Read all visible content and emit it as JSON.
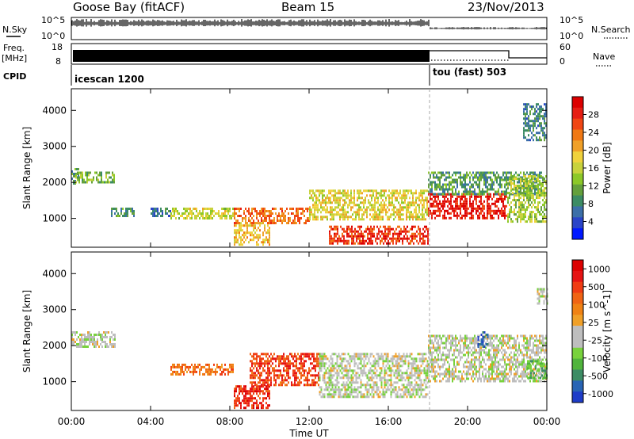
{
  "header": {
    "station": "Goose Bay (fitACF)",
    "beam": "Beam 15",
    "date": "23/Nov/2013"
  },
  "noise_panel": {
    "left_label": "N.Sky",
    "right_label": "N.Search",
    "left_ticks": [
      "10^5",
      "10^0"
    ],
    "right_ticks": [
      "10^5",
      "10^0"
    ]
  },
  "freq_panel": {
    "left_label_line1": "Freq.",
    "left_label_line2": "[MHz]",
    "left_ticks": [
      "18",
      "8"
    ],
    "right_label": "Nave",
    "right_ticks": [
      "60",
      "0"
    ]
  },
  "cpid_panel": {
    "label": "CPID",
    "segments": [
      {
        "name": "icescan 1200",
        "start_hour": 0
      },
      {
        "name": "tou (fast) 503",
        "start_hour": 18
      }
    ]
  },
  "chart_data": [
    {
      "type": "heatmap",
      "name": "power",
      "ylabel": "Slant Range [km]",
      "yticks": [
        "1000",
        "2000",
        "3000",
        "4000"
      ],
      "ylim": [
        200,
        4600
      ],
      "xlim": [
        0,
        24
      ],
      "colorbar": {
        "label": "Power [dB]",
        "ticks": [
          "4",
          "8",
          "12",
          "16",
          "20",
          "24",
          "28"
        ],
        "colors": [
          "#0018ff",
          "#2a44c8",
          "#3c6fa8",
          "#3c8c64",
          "#64a03c",
          "#8cc828",
          "#c8d23c",
          "#f0d23c",
          "#f0a028",
          "#f07814",
          "#f04614",
          "#e61e14",
          "#dc0000"
        ]
      },
      "regions": [
        {
          "x": [
            0,
            0.4
          ],
          "y": [
            2000,
            2400
          ],
          "level": 0.3
        },
        {
          "x": [
            0.2,
            2.2
          ],
          "y": [
            2000,
            2300
          ],
          "level": 0.4
        },
        {
          "x": [
            2.0,
            3.2
          ],
          "y": [
            1100,
            1300
          ],
          "level": 0.3
        },
        {
          "x": [
            4.0,
            5.0
          ],
          "y": [
            1100,
            1300
          ],
          "level": 0.2
        },
        {
          "x": [
            5.0,
            8.2
          ],
          "y": [
            1000,
            1300
          ],
          "level": 0.5
        },
        {
          "x": [
            8.2,
            10.0
          ],
          "y": [
            300,
            900
          ],
          "level": 0.6
        },
        {
          "x": [
            8.2,
            12.0
          ],
          "y": [
            900,
            1300
          ],
          "level": 0.75
        },
        {
          "x": [
            12.0,
            18.0
          ],
          "y": [
            1000,
            1800
          ],
          "level": 0.55
        },
        {
          "x": [
            13.0,
            18.0
          ],
          "y": [
            300,
            800
          ],
          "level": 0.85
        },
        {
          "x": [
            18.0,
            22.0
          ],
          "y": [
            1000,
            1700
          ],
          "level": 0.9
        },
        {
          "x": [
            18.0,
            23.8
          ],
          "y": [
            1700,
            2300
          ],
          "level": 0.3
        },
        {
          "x": [
            22.0,
            24.0
          ],
          "y": [
            900,
            2200
          ],
          "level": 0.45
        },
        {
          "x": [
            22.8,
            24.0
          ],
          "y": [
            3200,
            4200
          ],
          "level": 0.25
        }
      ]
    },
    {
      "type": "heatmap",
      "name": "velocity",
      "ylabel": "Slant Range [km]",
      "yticks": [
        "1000",
        "2000",
        "3000",
        "4000"
      ],
      "ylim": [
        200,
        4600
      ],
      "xlim": [
        0,
        24
      ],
      "colorbar": {
        "label": "Velocity [m s^-1]",
        "ticks": [
          "1000",
          "500",
          "100",
          "25",
          "-25",
          "-100",
          "-500",
          "-1000"
        ],
        "colors": [
          "#1e3cc8",
          "#2864b4",
          "#3c8c64",
          "#50b43c",
          "#78d23c",
          "#bebebe",
          "#bebebe",
          "#f0a028",
          "#f08214",
          "#f06414",
          "#f03c14",
          "#e61414",
          "#dc0000"
        ]
      },
      "regions": [
        {
          "x": [
            0,
            2.2
          ],
          "y": [
            2000,
            2400
          ],
          "level": 0.45
        },
        {
          "x": [
            5.0,
            8.2
          ],
          "y": [
            1200,
            1500
          ],
          "level": 0.7
        },
        {
          "x": [
            8.2,
            10.0
          ],
          "y": [
            300,
            900
          ],
          "level": 0.85
        },
        {
          "x": [
            9.0,
            12.5
          ],
          "y": [
            900,
            1800
          ],
          "level": 0.8
        },
        {
          "x": [
            12.5,
            18.0
          ],
          "y": [
            600,
            1800
          ],
          "level": 0.45
        },
        {
          "x": [
            18.0,
            24.0
          ],
          "y": [
            1000,
            2300
          ],
          "level": 0.45
        },
        {
          "x": [
            20.5,
            21.0
          ],
          "y": [
            2000,
            2400
          ],
          "level": 0.15
        },
        {
          "x": [
            23.0,
            24.0
          ],
          "y": [
            1100,
            1600
          ],
          "level": 0.3
        },
        {
          "x": [
            23.5,
            24.0
          ],
          "y": [
            3200,
            3600
          ],
          "level": 0.45
        }
      ]
    }
  ],
  "xaxis": {
    "ticks": [
      "00:00",
      "04:00",
      "08:00",
      "12:00",
      "16:00",
      "20:00",
      "00:00"
    ],
    "label": "Time UT"
  }
}
